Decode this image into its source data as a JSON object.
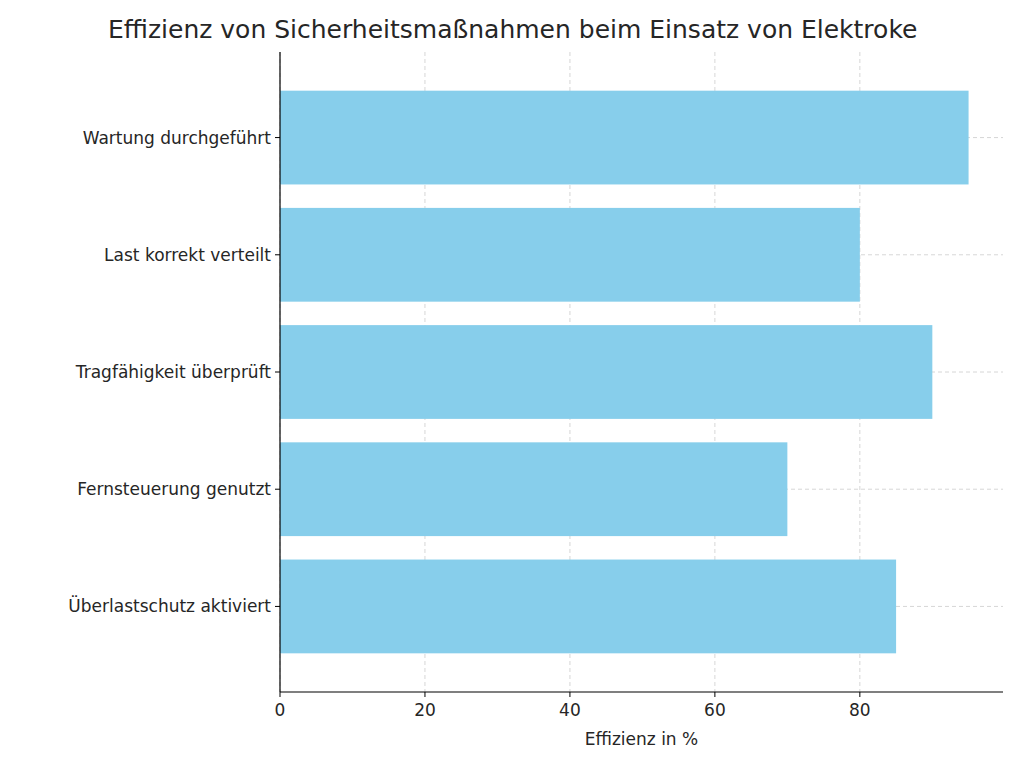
{
  "chart_data": {
    "type": "bar",
    "orientation": "horizontal",
    "title": "Effizienz von Sicherheitsmaßnahmen beim Einsatz von Elektroke",
    "x_label": "Effizienz in %",
    "categories": [
      "Wartung durchgeführt",
      "Last korrekt verteilt",
      "Tragfähigkeit überprüft",
      "Fernsteuerung genutzt",
      "Überlastschutz aktiviert"
    ],
    "values": [
      95,
      80,
      90,
      70,
      85
    ],
    "color": "#87ceeb",
    "xlim": [
      0,
      99.75
    ],
    "xticks": [
      0,
      20,
      40,
      60,
      80
    ],
    "grid": true
  }
}
